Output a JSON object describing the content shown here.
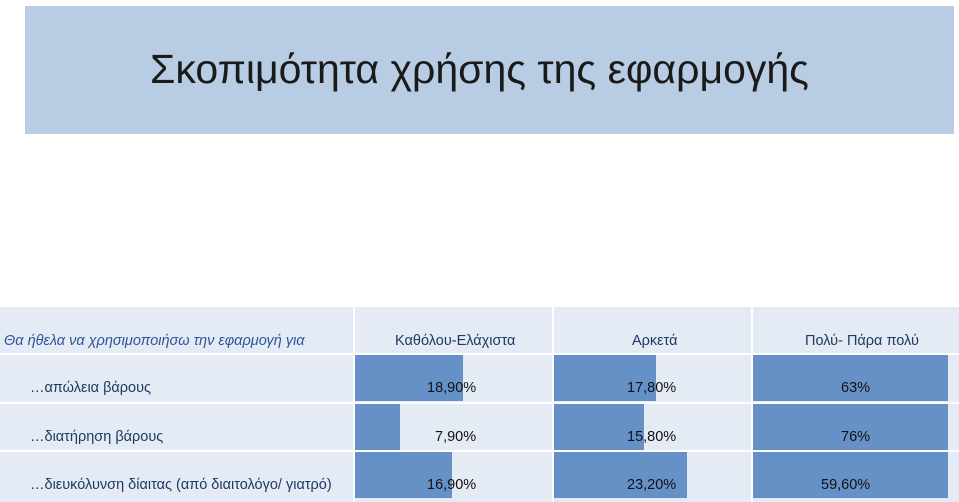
{
  "slide": {
    "title": "Σκοπιμότητα χρήσης της εφαρμογής"
  },
  "chart_data": {
    "type": "table",
    "columns": [
      "Θα ήθελα να χρησιμοποιήσω την εφαρμογή για",
      "Καθόλου-Ελάχιστα",
      "Αρκετά",
      "Πολύ- Πάρα πολύ"
    ],
    "rows": [
      {
        "label": "…απώλεια βάρους",
        "values": [
          18.9,
          17.8,
          63.0
        ],
        "labels": [
          "18,90%",
          "17,80%",
          "63%"
        ]
      },
      {
        "label": "…διατήρηση βάρους",
        "values": [
          7.9,
          15.8,
          76.0
        ],
        "labels": [
          "7,90%",
          "15,80%",
          "76%"
        ]
      },
      {
        "label": "…διευκόλυνση δίαιτας (από διαιτολόγο/ γιατρό)",
        "values": [
          16.9,
          23.2,
          59.6
        ],
        "labels": [
          "16,90%",
          "23,20%",
          "59,60%"
        ]
      }
    ],
    "bar_color": "#4f81bd"
  }
}
